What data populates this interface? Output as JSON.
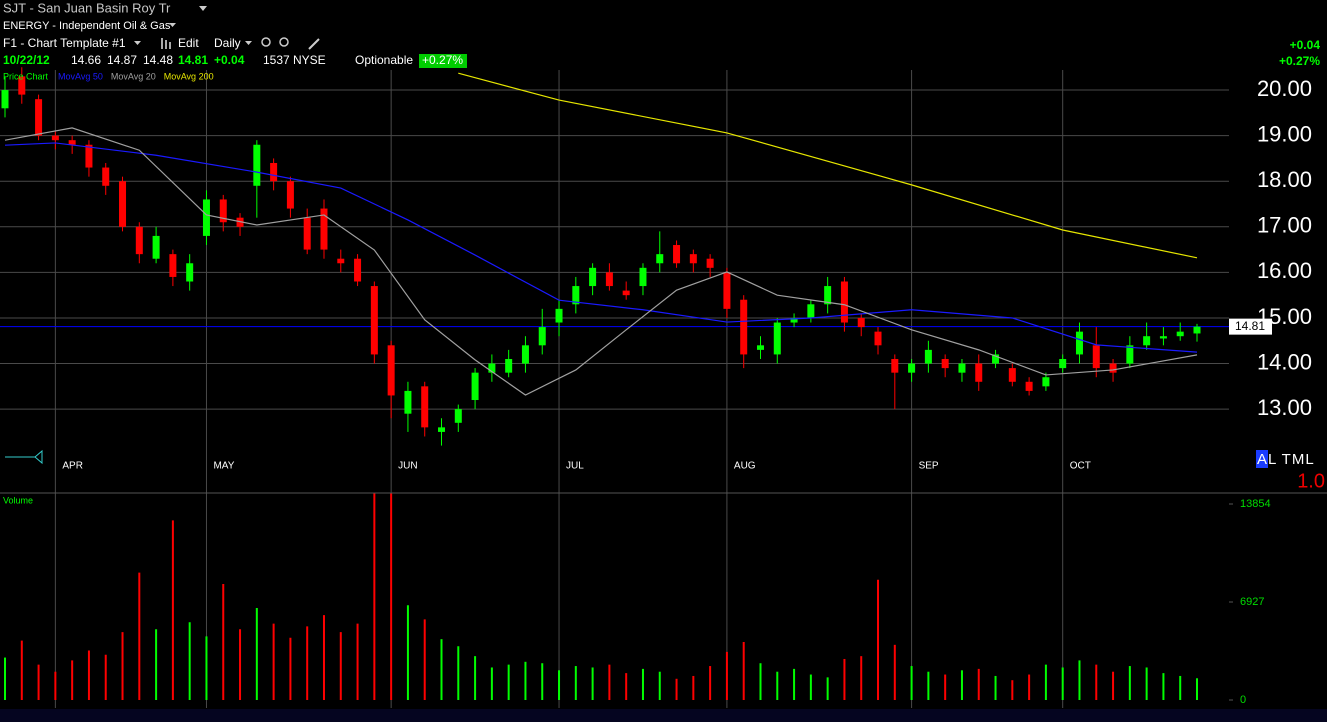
{
  "header": {
    "symbol_title": "SJT - San Juan Basin Roy Tr",
    "sector": "ENERGY - Independent Oil & Gas",
    "template": "F1 - Chart Template #1",
    "edit": "Edit",
    "period": "Daily",
    "date": "10/22/12",
    "change": "+0.04",
    "exchange": "NYSE",
    "optionable": "Optionable",
    "change_pct": "+0.27%",
    "right_change": "+0.04",
    "right_change_pct": "+0.27%",
    "series_label": "Price Chart",
    "volume_title": "Volume",
    "indicator": "AL TML",
    "indicator_value": "1.0"
  },
  "chart_data": {
    "type": "candlestick",
    "categories": [
      null,
      null,
      null,
      "APR",
      null,
      null,
      null,
      null,
      null,
      null,
      null,
      null,
      "MAY",
      null,
      null,
      null,
      null,
      null,
      null,
      null,
      null,
      null,
      null,
      "JUN",
      null,
      null,
      null,
      null,
      null,
      null,
      null,
      null,
      null,
      "JUL",
      null,
      null,
      null,
      null,
      null,
      null,
      null,
      null,
      null,
      "AUG",
      null,
      null,
      null,
      null,
      null,
      null,
      null,
      null,
      null,
      null,
      "SEP",
      null,
      null,
      null,
      null,
      null,
      null,
      null,
      null,
      "OCT",
      null,
      null,
      null,
      null,
      null,
      null,
      null,
      null
    ],
    "open": [
      19.6,
      20.3,
      19.8,
      19.0,
      18.9,
      18.8,
      18.3,
      18.0,
      17.0,
      16.3,
      16.4,
      15.8,
      16.8,
      17.6,
      17.2,
      17.9,
      18.4,
      18.0,
      17.2,
      17.4,
      16.3,
      16.3,
      15.7,
      14.4,
      12.9,
      13.5,
      12.5,
      12.7,
      13.2,
      13.8,
      13.8,
      14.0,
      14.4,
      14.9,
      15.3,
      15.7,
      16.0,
      15.6,
      15.7,
      16.2,
      16.6,
      16.4,
      16.3,
      16.0,
      15.4,
      14.3,
      14.2,
      14.9,
      15.0,
      15.3,
      15.8,
      15.0,
      14.7,
      14.1,
      13.8,
      14.0,
      14.1,
      13.8,
      14.0,
      14.0,
      13.9,
      13.6,
      13.5,
      13.9,
      14.2,
      14.4,
      14.0,
      14.0,
      14.4,
      14.55,
      14.6,
      14.66
    ],
    "high": [
      20.3,
      20.5,
      19.9,
      19.1,
      19.0,
      18.9,
      18.4,
      18.1,
      17.1,
      17.0,
      16.5,
      16.4,
      17.8,
      17.7,
      17.3,
      18.9,
      18.5,
      18.1,
      17.4,
      17.6,
      16.5,
      16.4,
      15.8,
      14.5,
      13.6,
      13.6,
      12.8,
      13.1,
      13.9,
      14.2,
      14.3,
      14.6,
      15.2,
      15.4,
      15.9,
      16.2,
      16.2,
      15.8,
      16.2,
      16.9,
      16.7,
      16.5,
      16.4,
      16.1,
      15.5,
      14.6,
      15.0,
      15.1,
      15.4,
      15.9,
      15.9,
      15.1,
      14.8,
      14.2,
      14.1,
      14.5,
      14.2,
      14.1,
      14.2,
      14.3,
      14.0,
      13.7,
      13.8,
      14.2,
      14.9,
      14.8,
      14.1,
      14.6,
      14.9,
      14.8,
      14.9,
      14.87
    ],
    "low": [
      19.4,
      19.7,
      18.9,
      18.7,
      18.6,
      18.1,
      17.7,
      16.9,
      16.2,
      16.2,
      15.7,
      15.6,
      16.6,
      16.9,
      16.8,
      17.2,
      17.8,
      17.2,
      16.4,
      16.3,
      16.0,
      15.7,
      14.0,
      12.8,
      12.5,
      12.4,
      12.2,
      12.5,
      13.0,
      13.6,
      13.7,
      13.8,
      14.2,
      14.6,
      15.1,
      15.5,
      15.6,
      15.4,
      15.5,
      16.0,
      16.1,
      16.0,
      15.9,
      15.0,
      13.9,
      14.1,
      14.0,
      14.8,
      14.9,
      15.1,
      14.7,
      14.6,
      14.2,
      13.0,
      13.6,
      13.8,
      13.7,
      13.6,
      13.4,
      13.9,
      13.5,
      13.3,
      13.4,
      13.8,
      14.0,
      13.7,
      13.6,
      13.9,
      14.3,
      14.4,
      14.5,
      14.48
    ],
    "close": [
      20.0,
      19.9,
      19.0,
      18.9,
      18.8,
      18.3,
      17.9,
      17.0,
      16.4,
      16.8,
      15.9,
      16.2,
      17.6,
      17.1,
      17.0,
      18.8,
      18.0,
      17.4,
      16.5,
      16.5,
      16.2,
      15.8,
      14.2,
      13.3,
      13.4,
      12.6,
      12.6,
      13.0,
      13.8,
      14.0,
      14.1,
      14.4,
      14.8,
      15.2,
      15.7,
      16.1,
      15.7,
      15.5,
      16.1,
      16.4,
      16.2,
      16.2,
      16.1,
      15.2,
      14.2,
      14.4,
      14.9,
      15.0,
      15.3,
      15.7,
      14.9,
      14.8,
      14.4,
      13.8,
      14.0,
      14.3,
      13.9,
      14.0,
      13.6,
      14.2,
      13.6,
      13.4,
      13.7,
      14.1,
      14.7,
      13.9,
      13.8,
      14.4,
      14.6,
      14.6,
      14.7,
      14.81
    ],
    "volume": [
      3000,
      4200,
      2500,
      2000,
      2800,
      3500,
      3200,
      4800,
      9000,
      5000,
      12700,
      5500,
      4500,
      8200,
      5000,
      6500,
      5400,
      4400,
      5200,
      6000,
      4800,
      5400,
      14600,
      14600,
      6700,
      5700,
      4300,
      3800,
      3100,
      2300,
      2500,
      2700,
      2600,
      2100,
      2400,
      2300,
      2500,
      1900,
      2200,
      2000,
      1500,
      1700,
      2400,
      3400,
      4100,
      2600,
      2000,
      2200,
      1800,
      1600,
      2900,
      3100,
      8500,
      3900,
      2400,
      2000,
      1800,
      2100,
      2200,
      1700,
      1400,
      1800,
      2500,
      2300,
      2800,
      2500,
      2000,
      2400,
      2300,
      1900,
      1700,
      1537
    ],
    "up_color": "#00ff00",
    "down_color": "#ff0000",
    "last_price_color": "#0000ff",
    "moving_averages": [
      {
        "name": "MovAvg 50",
        "color": "#1a1aff",
        "x": [
          0,
          3,
          9,
          15,
          20,
          24,
          28,
          33,
          38,
          43,
          48,
          54,
          60,
          65,
          71
        ],
        "values": [
          18.79,
          18.84,
          18.57,
          18.2,
          17.85,
          17.15,
          16.38,
          15.39,
          15.18,
          14.91,
          15.0,
          15.18,
          15.0,
          14.41,
          14.25
        ]
      },
      {
        "name": "MovAvg 20",
        "color": "#a0a0a0",
        "x": [
          0,
          4,
          8,
          12,
          15,
          19,
          22,
          25,
          28,
          31,
          34,
          37,
          40,
          43,
          46,
          50,
          54,
          58,
          62,
          66,
          71
        ],
        "values": [
          18.9,
          19.17,
          18.68,
          17.26,
          17.04,
          17.26,
          16.49,
          14.96,
          14.08,
          13.31,
          13.86,
          14.74,
          15.61,
          16.01,
          15.5,
          15.29,
          14.74,
          14.3,
          13.75,
          13.86,
          14.19
        ]
      },
      {
        "name": "MovAvg 200",
        "color": "#e6e600",
        "x": [
          27,
          33,
          43,
          54,
          63,
          71
        ],
        "values": [
          20.37,
          19.78,
          19.06,
          17.92,
          16.93,
          16.32
        ]
      }
    ],
    "ylim": [
      11.16,
      20.44
    ],
    "yticks": [
      {
        "value": 13,
        "label": "13.00"
      },
      {
        "value": 14,
        "label": "14.00"
      },
      {
        "value": 15,
        "label": "15.00"
      },
      {
        "value": 16,
        "label": "16.00"
      },
      {
        "value": 17,
        "label": "17.00"
      },
      {
        "value": 18,
        "label": "18.00"
      },
      {
        "value": 19,
        "label": "19.00"
      },
      {
        "value": 20,
        "label": "20.00"
      }
    ],
    "volume_ylim": [
      -565,
      14631
    ],
    "volume_yticks": [
      0,
      6927,
      13854
    ],
    "grid": true
  }
}
